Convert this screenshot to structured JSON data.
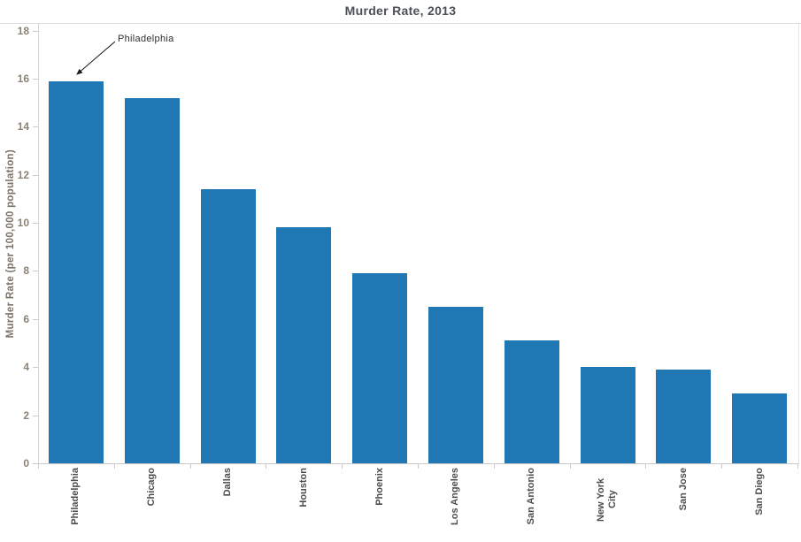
{
  "chart_data": {
    "type": "bar",
    "title": "Murder Rate, 2013",
    "ylabel": "Murder Rate (per 100,000 population)",
    "xlabel": "",
    "categories": [
      "Philadelphia",
      "Chicago",
      "Dallas",
      "Houston",
      "Phoenix",
      "Los Angeles",
      "San Antonio",
      "New York City",
      "San Jose",
      "San Diego"
    ],
    "values": [
      15.9,
      15.2,
      11.4,
      9.8,
      7.9,
      6.5,
      5.1,
      4.0,
      3.9,
      2.9
    ],
    "ylim": [
      0,
      18
    ],
    "ytick_step": 2,
    "grid": false,
    "legend": "none",
    "bar_color": "#1f77b4",
    "annotation": {
      "text": "Philadelphia",
      "target_category": "Philadelphia"
    }
  }
}
